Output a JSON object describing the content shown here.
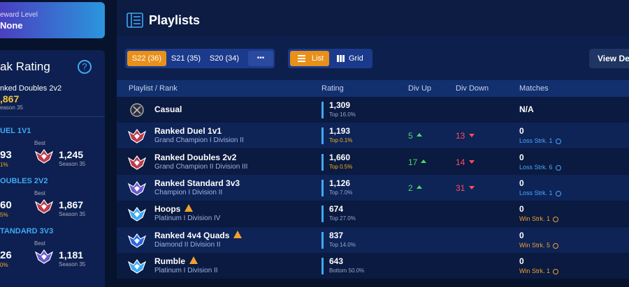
{
  "sidebar": {
    "reward_label": "eward Level",
    "reward_value": "None",
    "peak_title": "ak Rating",
    "peak_playlist": "nked Doubles 2v2",
    "peak_rating": ",867",
    "peak_season": "eason 35",
    "modes": [
      {
        "name": "UEL 1V1",
        "current": "93",
        "current_sub": "1%",
        "best_label": "Best",
        "best": "1,245",
        "best_season": "Season 35"
      },
      {
        "name": "OUBLES 2V2",
        "current": "60",
        "current_sub": "5%",
        "best_label": "Best",
        "best": "1,867",
        "best_season": "Season 35"
      },
      {
        "name": "TANDARD 3V3",
        "current": "26",
        "current_sub": "0%",
        "best_label": "Best",
        "best": "1,181",
        "best_season": "Season 35"
      }
    ]
  },
  "header": {
    "title": "Playlists"
  },
  "toolbar": {
    "seasons": [
      "S22 (36)",
      "S21 (35)",
      "S20 (34)"
    ],
    "more": "•••",
    "views": [
      "List",
      "Grid"
    ],
    "details": "View Det"
  },
  "table": {
    "columns": [
      "Playlist / Rank",
      "Rating",
      "Div Up",
      "Div Down",
      "Matches"
    ],
    "rows": [
      {
        "name": "Casual",
        "rank": null,
        "rating": "1,309",
        "percentile": "Top 16.0%",
        "percentile_color": "#9aa8c8",
        "div_up": null,
        "div_down": null,
        "matches": "N/A",
        "streak": null,
        "streak_color": null,
        "warning": false
      },
      {
        "name": "Ranked Duel 1v1",
        "rank": "Grand Champion I Division II",
        "rating": "1,193",
        "percentile": "Top 0.1%",
        "percentile_color": "#f2b01e",
        "div_up": "5",
        "div_down": "13",
        "matches": "0",
        "streak": "Loss Strk. 1",
        "streak_color": "#4aa8ff",
        "warning": false
      },
      {
        "name": "Ranked Doubles 2v2",
        "rank": "Grand Champion II Division III",
        "rating": "1,660",
        "percentile": "Top 0.5%",
        "percentile_color": "#f2b01e",
        "div_up": "17",
        "div_down": "14",
        "matches": "0",
        "streak": "Loss Strk. 6",
        "streak_color": "#4aa8ff",
        "warning": false
      },
      {
        "name": "Ranked Standard 3v3",
        "rank": "Champion I Division II",
        "rating": "1,126",
        "percentile": "Top 7.0%",
        "percentile_color": "#9aa8c8",
        "div_up": "2",
        "div_down": "31",
        "matches": "0",
        "streak": "Loss Strk. 1",
        "streak_color": "#4aa8ff",
        "warning": false
      },
      {
        "name": "Hoops",
        "rank": "Platinum I Division IV",
        "rating": "674",
        "percentile": "Top 27.0%",
        "percentile_color": "#9aa8c8",
        "div_up": null,
        "div_down": null,
        "matches": "0",
        "streak": "Win Strk. 1",
        "streak_color": "#f0a030",
        "warning": true
      },
      {
        "name": "Ranked 4v4 Quads",
        "rank": "Diamond II Division II",
        "rating": "837",
        "percentile": "Top 14.0%",
        "percentile_color": "#9aa8c8",
        "div_up": null,
        "div_down": null,
        "matches": "0",
        "streak": "Win Strk. 5",
        "streak_color": "#f0a030",
        "warning": true
      },
      {
        "name": "Rumble",
        "rank": "Platinum I Division II",
        "rating": "643",
        "percentile": "Bottom 50.0%",
        "percentile_color": "#9aa8c8",
        "div_up": null,
        "div_down": null,
        "matches": "0",
        "streak": "Win Strk. 1",
        "streak_color": "#f0a030",
        "warning": true
      }
    ]
  }
}
